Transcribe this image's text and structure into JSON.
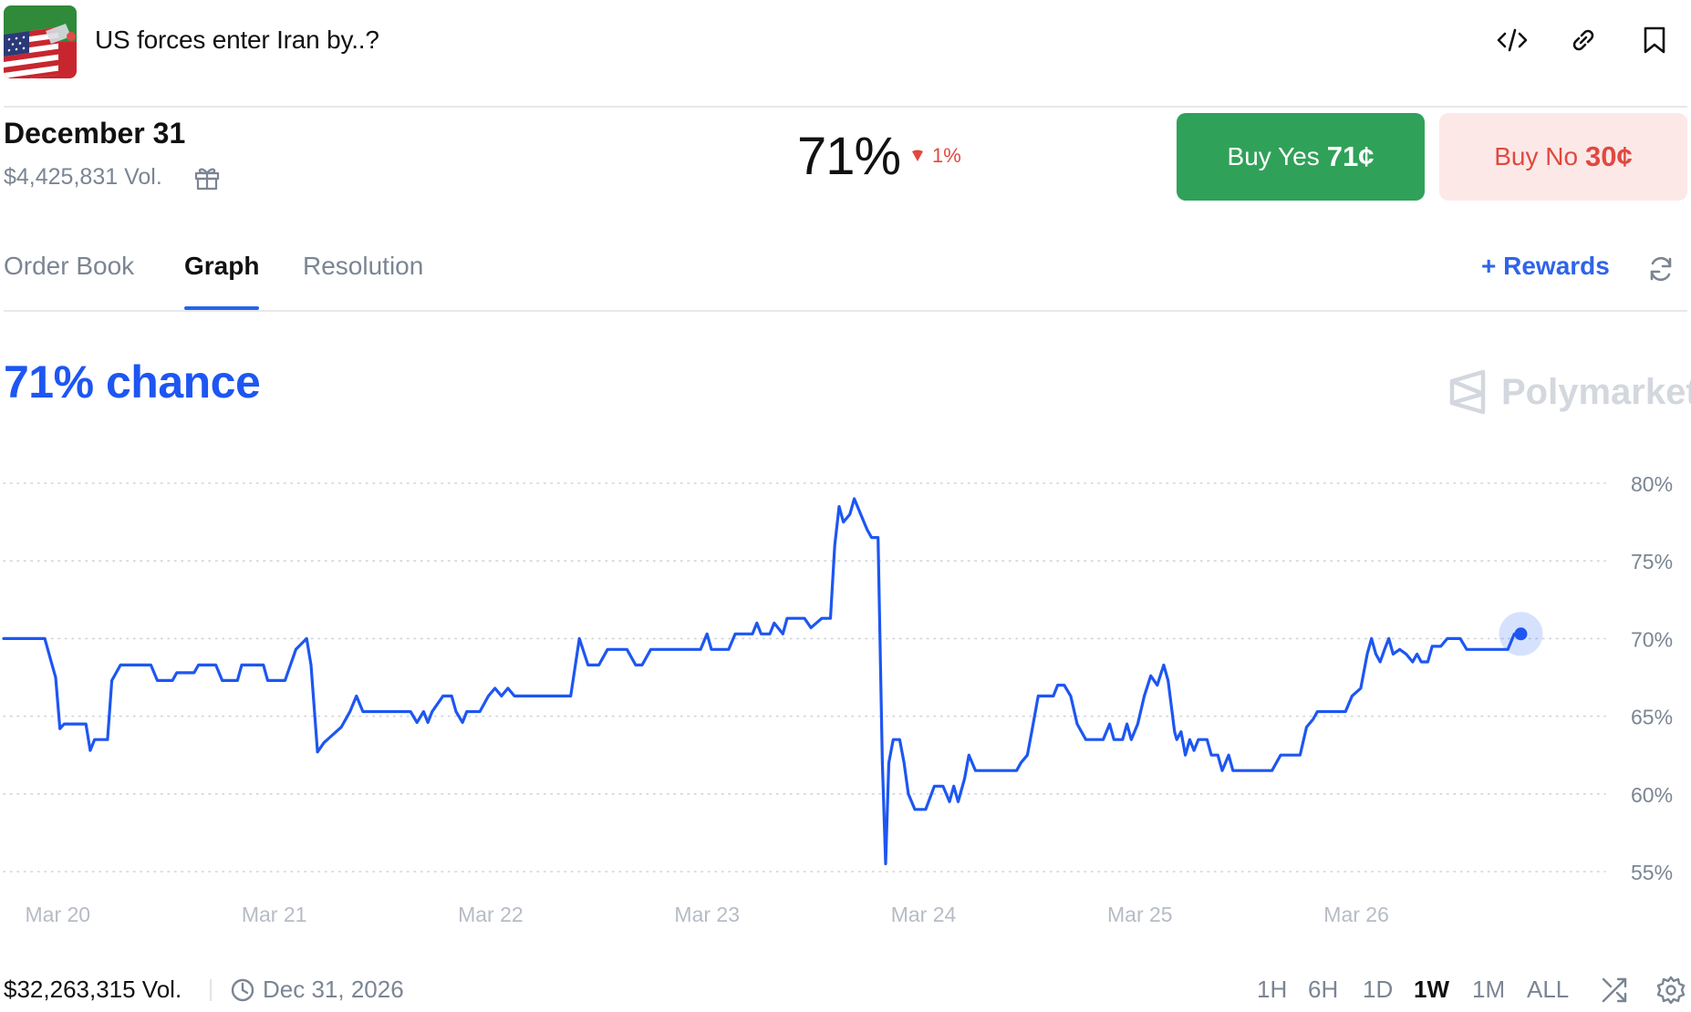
{
  "market": {
    "title": "US forces enter Iran by..?",
    "thumbnail_icon": "flag-thumbnail-icon"
  },
  "header_icons": [
    "embed-code-icon",
    "link-icon",
    "bookmark-icon"
  ],
  "outcome": {
    "name": "December 31",
    "volume": "$4,425,831 Vol.",
    "probability": "71%",
    "change": "1%",
    "change_direction": "down"
  },
  "buttons": {
    "yes_label": "Buy Yes",
    "yes_price": "71¢",
    "no_label": "Buy No",
    "no_price": "30¢"
  },
  "tabs": [
    {
      "label": "Order Book",
      "active": false
    },
    {
      "label": "Graph",
      "active": true
    },
    {
      "label": "Resolution",
      "active": false
    }
  ],
  "rewards_label": "+ Rewards",
  "chance_label": "71% chance",
  "brand": "Polymarket",
  "colors": {
    "accent": "#1d56f2",
    "yes": "#30a159",
    "no": "#e0493f",
    "no_bg": "#fde8e8"
  },
  "chart_data": {
    "type": "line",
    "ylim": [
      55,
      80
    ],
    "yticks": [
      "80%",
      "75%",
      "70%",
      "65%",
      "60%",
      "55%"
    ],
    "ytick_values": [
      80,
      75,
      70,
      65,
      60,
      55
    ],
    "xticks": [
      "Mar 20",
      "Mar 21",
      "Mar 22",
      "Mar 23",
      "Mar 24",
      "Mar 25",
      "Mar 26"
    ],
    "xtick_values": [
      0.25,
      1.25,
      2.25,
      3.25,
      4.25,
      5.25,
      6.25
    ],
    "xlim": [
      0,
      7.4
    ],
    "grid": true,
    "series": [
      {
        "color": "#1d56f2",
        "points": [
          [
            0,
            70
          ],
          [
            0.19,
            70
          ],
          [
            0.22,
            68.5
          ],
          [
            0.24,
            67.5
          ],
          [
            0.26,
            64.2
          ],
          [
            0.28,
            64.5
          ],
          [
            0.38,
            64.5
          ],
          [
            0.4,
            62.8
          ],
          [
            0.42,
            63.5
          ],
          [
            0.48,
            63.5
          ],
          [
            0.5,
            67.3
          ],
          [
            0.54,
            68.3
          ],
          [
            0.68,
            68.3
          ],
          [
            0.71,
            67.3
          ],
          [
            0.78,
            67.3
          ],
          [
            0.8,
            67.8
          ],
          [
            0.88,
            67.8
          ],
          [
            0.9,
            68.3
          ],
          [
            0.98,
            68.3
          ],
          [
            1.01,
            67.3
          ],
          [
            1.08,
            67.3
          ],
          [
            1.1,
            68.3
          ],
          [
            1.2,
            68.3
          ],
          [
            1.22,
            67.3
          ],
          [
            1.3,
            67.3
          ],
          [
            1.35,
            69.3
          ],
          [
            1.4,
            70
          ],
          [
            1.42,
            68.3
          ],
          [
            1.45,
            62.7
          ],
          [
            1.48,
            63.3
          ],
          [
            1.52,
            63.8
          ],
          [
            1.56,
            64.3
          ],
          [
            1.6,
            65.3
          ],
          [
            1.63,
            66.3
          ],
          [
            1.66,
            65.3
          ],
          [
            1.75,
            65.3
          ],
          [
            1.88,
            65.3
          ],
          [
            1.91,
            64.6
          ],
          [
            1.94,
            65.3
          ],
          [
            1.96,
            64.6
          ],
          [
            1.98,
            65.3
          ],
          [
            2.03,
            66.3
          ],
          [
            2.07,
            66.3
          ],
          [
            2.09,
            65.3
          ],
          [
            2.12,
            64.6
          ],
          [
            2.14,
            65.3
          ],
          [
            2.2,
            65.3
          ],
          [
            2.24,
            66.3
          ],
          [
            2.27,
            66.8
          ],
          [
            2.3,
            66.3
          ],
          [
            2.33,
            66.8
          ],
          [
            2.36,
            66.3
          ],
          [
            2.62,
            66.3
          ],
          [
            2.66,
            70
          ],
          [
            2.7,
            68.3
          ],
          [
            2.75,
            68.3
          ],
          [
            2.79,
            69.3
          ],
          [
            2.88,
            69.3
          ],
          [
            2.92,
            68.3
          ],
          [
            2.95,
            68.3
          ],
          [
            2.99,
            69.3
          ],
          [
            3.22,
            69.3
          ],
          [
            3.25,
            70.3
          ],
          [
            3.27,
            69.3
          ],
          [
            3.35,
            69.3
          ],
          [
            3.38,
            70.3
          ],
          [
            3.46,
            70.3
          ],
          [
            3.48,
            71
          ],
          [
            3.5,
            70.3
          ],
          [
            3.54,
            70.3
          ],
          [
            3.56,
            71
          ],
          [
            3.6,
            70.3
          ],
          [
            3.62,
            71.3
          ],
          [
            3.7,
            71.3
          ],
          [
            3.73,
            70.7
          ],
          [
            3.78,
            71.3
          ],
          [
            3.82,
            71.3
          ],
          [
            3.84,
            76
          ],
          [
            3.86,
            78.5
          ],
          [
            3.88,
            77.5
          ],
          [
            3.91,
            78
          ],
          [
            3.93,
            79
          ],
          [
            3.96,
            78
          ],
          [
            3.99,
            77
          ],
          [
            4.01,
            76.5
          ],
          [
            4.04,
            76.5
          ],
          [
            4.06,
            62
          ],
          [
            4.075,
            55.5
          ],
          [
            4.09,
            62
          ],
          [
            4.11,
            63.5
          ],
          [
            4.14,
            63.5
          ],
          [
            4.16,
            62
          ],
          [
            4.18,
            60
          ],
          [
            4.21,
            59
          ],
          [
            4.26,
            59
          ],
          [
            4.3,
            60.5
          ],
          [
            4.34,
            60.5
          ],
          [
            4.37,
            59.5
          ],
          [
            4.39,
            60.5
          ],
          [
            4.41,
            59.5
          ],
          [
            4.44,
            61
          ],
          [
            4.46,
            62.5
          ],
          [
            4.49,
            61.5
          ],
          [
            4.68,
            61.5
          ],
          [
            4.7,
            62
          ],
          [
            4.73,
            62.5
          ],
          [
            4.75,
            64
          ],
          [
            4.78,
            66.3
          ],
          [
            4.85,
            66.3
          ],
          [
            4.87,
            67
          ],
          [
            4.9,
            67
          ],
          [
            4.93,
            66.3
          ],
          [
            4.96,
            64.5
          ],
          [
            5,
            63.5
          ],
          [
            5.08,
            63.5
          ],
          [
            5.11,
            64.5
          ],
          [
            5.13,
            63.5
          ],
          [
            5.17,
            63.5
          ],
          [
            5.19,
            64.5
          ],
          [
            5.21,
            63.5
          ],
          [
            5.24,
            64.5
          ],
          [
            5.27,
            66.3
          ],
          [
            5.3,
            67.6
          ],
          [
            5.33,
            67
          ],
          [
            5.36,
            68.3
          ],
          [
            5.38,
            67.3
          ],
          [
            5.41,
            64
          ],
          [
            5.42,
            63.5
          ],
          [
            5.44,
            64
          ],
          [
            5.46,
            62.5
          ],
          [
            5.48,
            63.5
          ],
          [
            5.5,
            62.8
          ],
          [
            5.52,
            63.5
          ],
          [
            5.56,
            63.5
          ],
          [
            5.58,
            62.5
          ],
          [
            5.61,
            62.5
          ],
          [
            5.63,
            61.5
          ],
          [
            5.66,
            62.5
          ],
          [
            5.68,
            61.5
          ],
          [
            5.86,
            61.5
          ],
          [
            5.9,
            62.5
          ],
          [
            5.99,
            62.5
          ],
          [
            6.02,
            64.3
          ],
          [
            6.05,
            64.8
          ],
          [
            6.07,
            65.3
          ],
          [
            6.2,
            65.3
          ],
          [
            6.23,
            66.3
          ],
          [
            6.27,
            66.8
          ],
          [
            6.3,
            69
          ],
          [
            6.32,
            70
          ],
          [
            6.34,
            69
          ],
          [
            6.36,
            68.5
          ],
          [
            6.38,
            69.3
          ],
          [
            6.4,
            70
          ],
          [
            6.42,
            69
          ],
          [
            6.45,
            69.3
          ],
          [
            6.48,
            69
          ],
          [
            6.51,
            68.5
          ],
          [
            6.53,
            69
          ],
          [
            6.55,
            68.5
          ],
          [
            6.58,
            68.5
          ],
          [
            6.6,
            69.5
          ],
          [
            6.64,
            69.5
          ],
          [
            6.67,
            70
          ],
          [
            6.73,
            70
          ],
          [
            6.76,
            69.3
          ],
          [
            6.95,
            69.3
          ],
          [
            6.98,
            70.3
          ],
          [
            7.01,
            70.3
          ]
        ]
      }
    ],
    "last_point": [
      7.01,
      70.3
    ]
  },
  "footer": {
    "total_volume": "$32,263,315 Vol.",
    "end_date": "Dec 31, 2026",
    "ranges": [
      {
        "label": "1H",
        "active": false
      },
      {
        "label": "6H",
        "active": false
      },
      {
        "label": "1D",
        "active": false
      },
      {
        "label": "1W",
        "active": true
      },
      {
        "label": "1M",
        "active": false
      },
      {
        "label": "ALL",
        "active": false
      }
    ]
  }
}
